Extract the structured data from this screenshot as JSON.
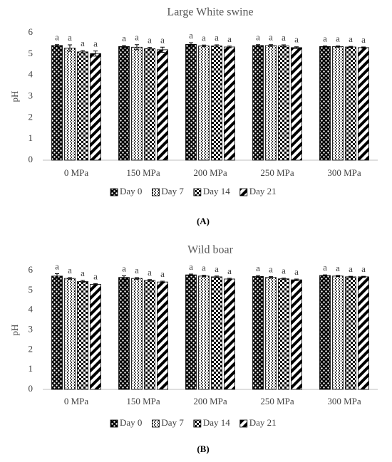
{
  "chart_data": [
    {
      "type": "bar",
      "title": "Large White swine",
      "ylabel": "pH",
      "caption": "(A)",
      "categories": [
        "0 MPa",
        "150 MPa",
        "200 MPa",
        "250 MPa",
        "300 MPa"
      ],
      "ylim": [
        0,
        6
      ],
      "yticks": [
        0,
        1,
        2,
        3,
        4,
        5,
        6
      ],
      "series": [
        {
          "name": "Day 0",
          "color": "#000000",
          "pattern": "dots",
          "values": [
            5.4,
            5.35,
            5.45,
            5.4,
            5.35
          ],
          "errors": [
            0.04,
            0.05,
            0.08,
            0.04,
            0.03
          ],
          "labels": [
            "a",
            "a",
            "a",
            "a",
            "a"
          ]
        },
        {
          "name": "Day 7",
          "color": "#000000",
          "pattern": "vertical",
          "values": [
            5.28,
            5.32,
            5.38,
            5.4,
            5.35
          ],
          "errors": [
            0.15,
            0.12,
            0.04,
            0.04,
            0.03
          ],
          "labels": [
            "a",
            "a",
            "a",
            "a",
            "a"
          ]
        },
        {
          "name": "Day 14",
          "color": "#000000",
          "pattern": "checker",
          "values": [
            5.1,
            5.25,
            5.38,
            5.38,
            5.33
          ],
          "errors": [
            0.06,
            0.06,
            0.05,
            0.05,
            0.03
          ],
          "labels": [
            "a",
            "a",
            "a",
            "a",
            "a"
          ]
        },
        {
          "name": "Day 21",
          "color": "#000000",
          "pattern": "diagonal",
          "values": [
            5.02,
            5.2,
            5.33,
            5.3,
            5.3
          ],
          "errors": [
            0.12,
            0.12,
            0.04,
            0.04,
            0.03
          ],
          "labels": [
            "a",
            "a",
            "a",
            "a",
            "a"
          ]
        }
      ]
    },
    {
      "type": "bar",
      "title": "Wild boar",
      "ylabel": "pH",
      "caption": "(B)",
      "categories": [
        "0 MPa",
        "150 MPa",
        "200 MPa",
        "250 MPa",
        "300 MPa"
      ],
      "ylim": [
        0,
        6
      ],
      "yticks": [
        0,
        1,
        2,
        3,
        4,
        5,
        6
      ],
      "series": [
        {
          "name": "Day 0",
          "color": "#000000",
          "pattern": "dots",
          "values": [
            5.72,
            5.65,
            5.78,
            5.7,
            5.75
          ],
          "errors": [
            0.12,
            0.08,
            0.04,
            0.04,
            0.03
          ],
          "labels": [
            "a",
            "a",
            "a",
            "a",
            "a"
          ]
        },
        {
          "name": "Day 7",
          "color": "#000000",
          "pattern": "vertical",
          "values": [
            5.6,
            5.6,
            5.72,
            5.65,
            5.72
          ],
          "errors": [
            0.04,
            0.04,
            0.04,
            0.04,
            0.03
          ],
          "labels": [
            "a",
            "a",
            "a",
            "a",
            "a"
          ]
        },
        {
          "name": "Day 14",
          "color": "#000000",
          "pattern": "checker",
          "values": [
            5.45,
            5.5,
            5.68,
            5.58,
            5.68
          ],
          "errors": [
            0.05,
            0.04,
            0.04,
            0.04,
            0.03
          ],
          "labels": [
            "a",
            "a",
            "a",
            "a",
            "a"
          ]
        },
        {
          "name": "Day 21",
          "color": "#000000",
          "pattern": "diagonal",
          "values": [
            5.3,
            5.42,
            5.57,
            5.53,
            5.68
          ],
          "errors": [
            0.04,
            0.04,
            0.04,
            0.04,
            0.03
          ],
          "labels": [
            "a",
            "a",
            "a",
            "a",
            "a"
          ]
        }
      ]
    }
  ]
}
